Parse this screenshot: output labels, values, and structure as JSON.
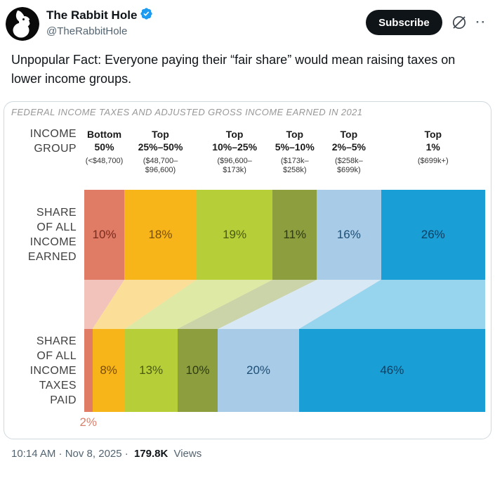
{
  "header": {
    "display_name": "The Rabbit Hole",
    "handle": "@TheRabbitHole",
    "subscribe_label": "Subscribe",
    "more_glyph": "··"
  },
  "tweet": {
    "text": "Unpopular Fact: Everyone paying their “fair share” would mean raising taxes on lower income groups."
  },
  "chart_data": {
    "type": "bar",
    "subtype": "100%-stacked-horizontal-with-flows",
    "title": "FEDERAL INCOME TAXES AND ADJUSTED GROSS INCOME EARNED IN 2021",
    "row_header_label": "INCOME\nGROUP",
    "categories": [
      {
        "group": "Bottom\n50%",
        "range": "(<$48,700)"
      },
      {
        "group": "Top\n25%–50%",
        "range": "($48,700–\n$96,600)"
      },
      {
        "group": "Top\n10%–25%",
        "range": "($96,600–\n$173k)"
      },
      {
        "group": "Top\n5%–10%",
        "range": "($173k–\n$258k)"
      },
      {
        "group": "Top\n2%–5%",
        "range": "($258k–\n$699k)"
      },
      {
        "group": "Top\n1%",
        "range": "($699k+)"
      }
    ],
    "series": [
      {
        "name": "SHARE\nOF ALL\nINCOME\nEARNED",
        "values": [
          10,
          18,
          19,
          11,
          16,
          26
        ]
      },
      {
        "name": "SHARE\nOF ALL\nINCOME\nTAXES\nPAID",
        "values": [
          2,
          8,
          13,
          10,
          20,
          46
        ]
      }
    ],
    "unit": "%",
    "colors": [
      "#E07B66",
      "#F7B519",
      "#B6CE38",
      "#8C9E3E",
      "#A8CBE8",
      "#199FD6"
    ],
    "label_colors": [
      "#7B2B1D",
      "#7A4D05",
      "#4A5A12",
      "#2E3A10",
      "#1D4E74",
      "#0F3F63"
    ],
    "outside_label": {
      "text": "2%",
      "color": "#D8806C"
    },
    "legend_position": "none",
    "grid": false
  },
  "footer": {
    "meta": "10:14 AM · Nov 8, 2025 ·",
    "views_count": "179.8K",
    "views_label": "Views"
  },
  "brand_colors": {
    "verified_blue": "#1d9bf0",
    "subscribe_bg": "#0f1419",
    "muted_gray": "#536471"
  }
}
